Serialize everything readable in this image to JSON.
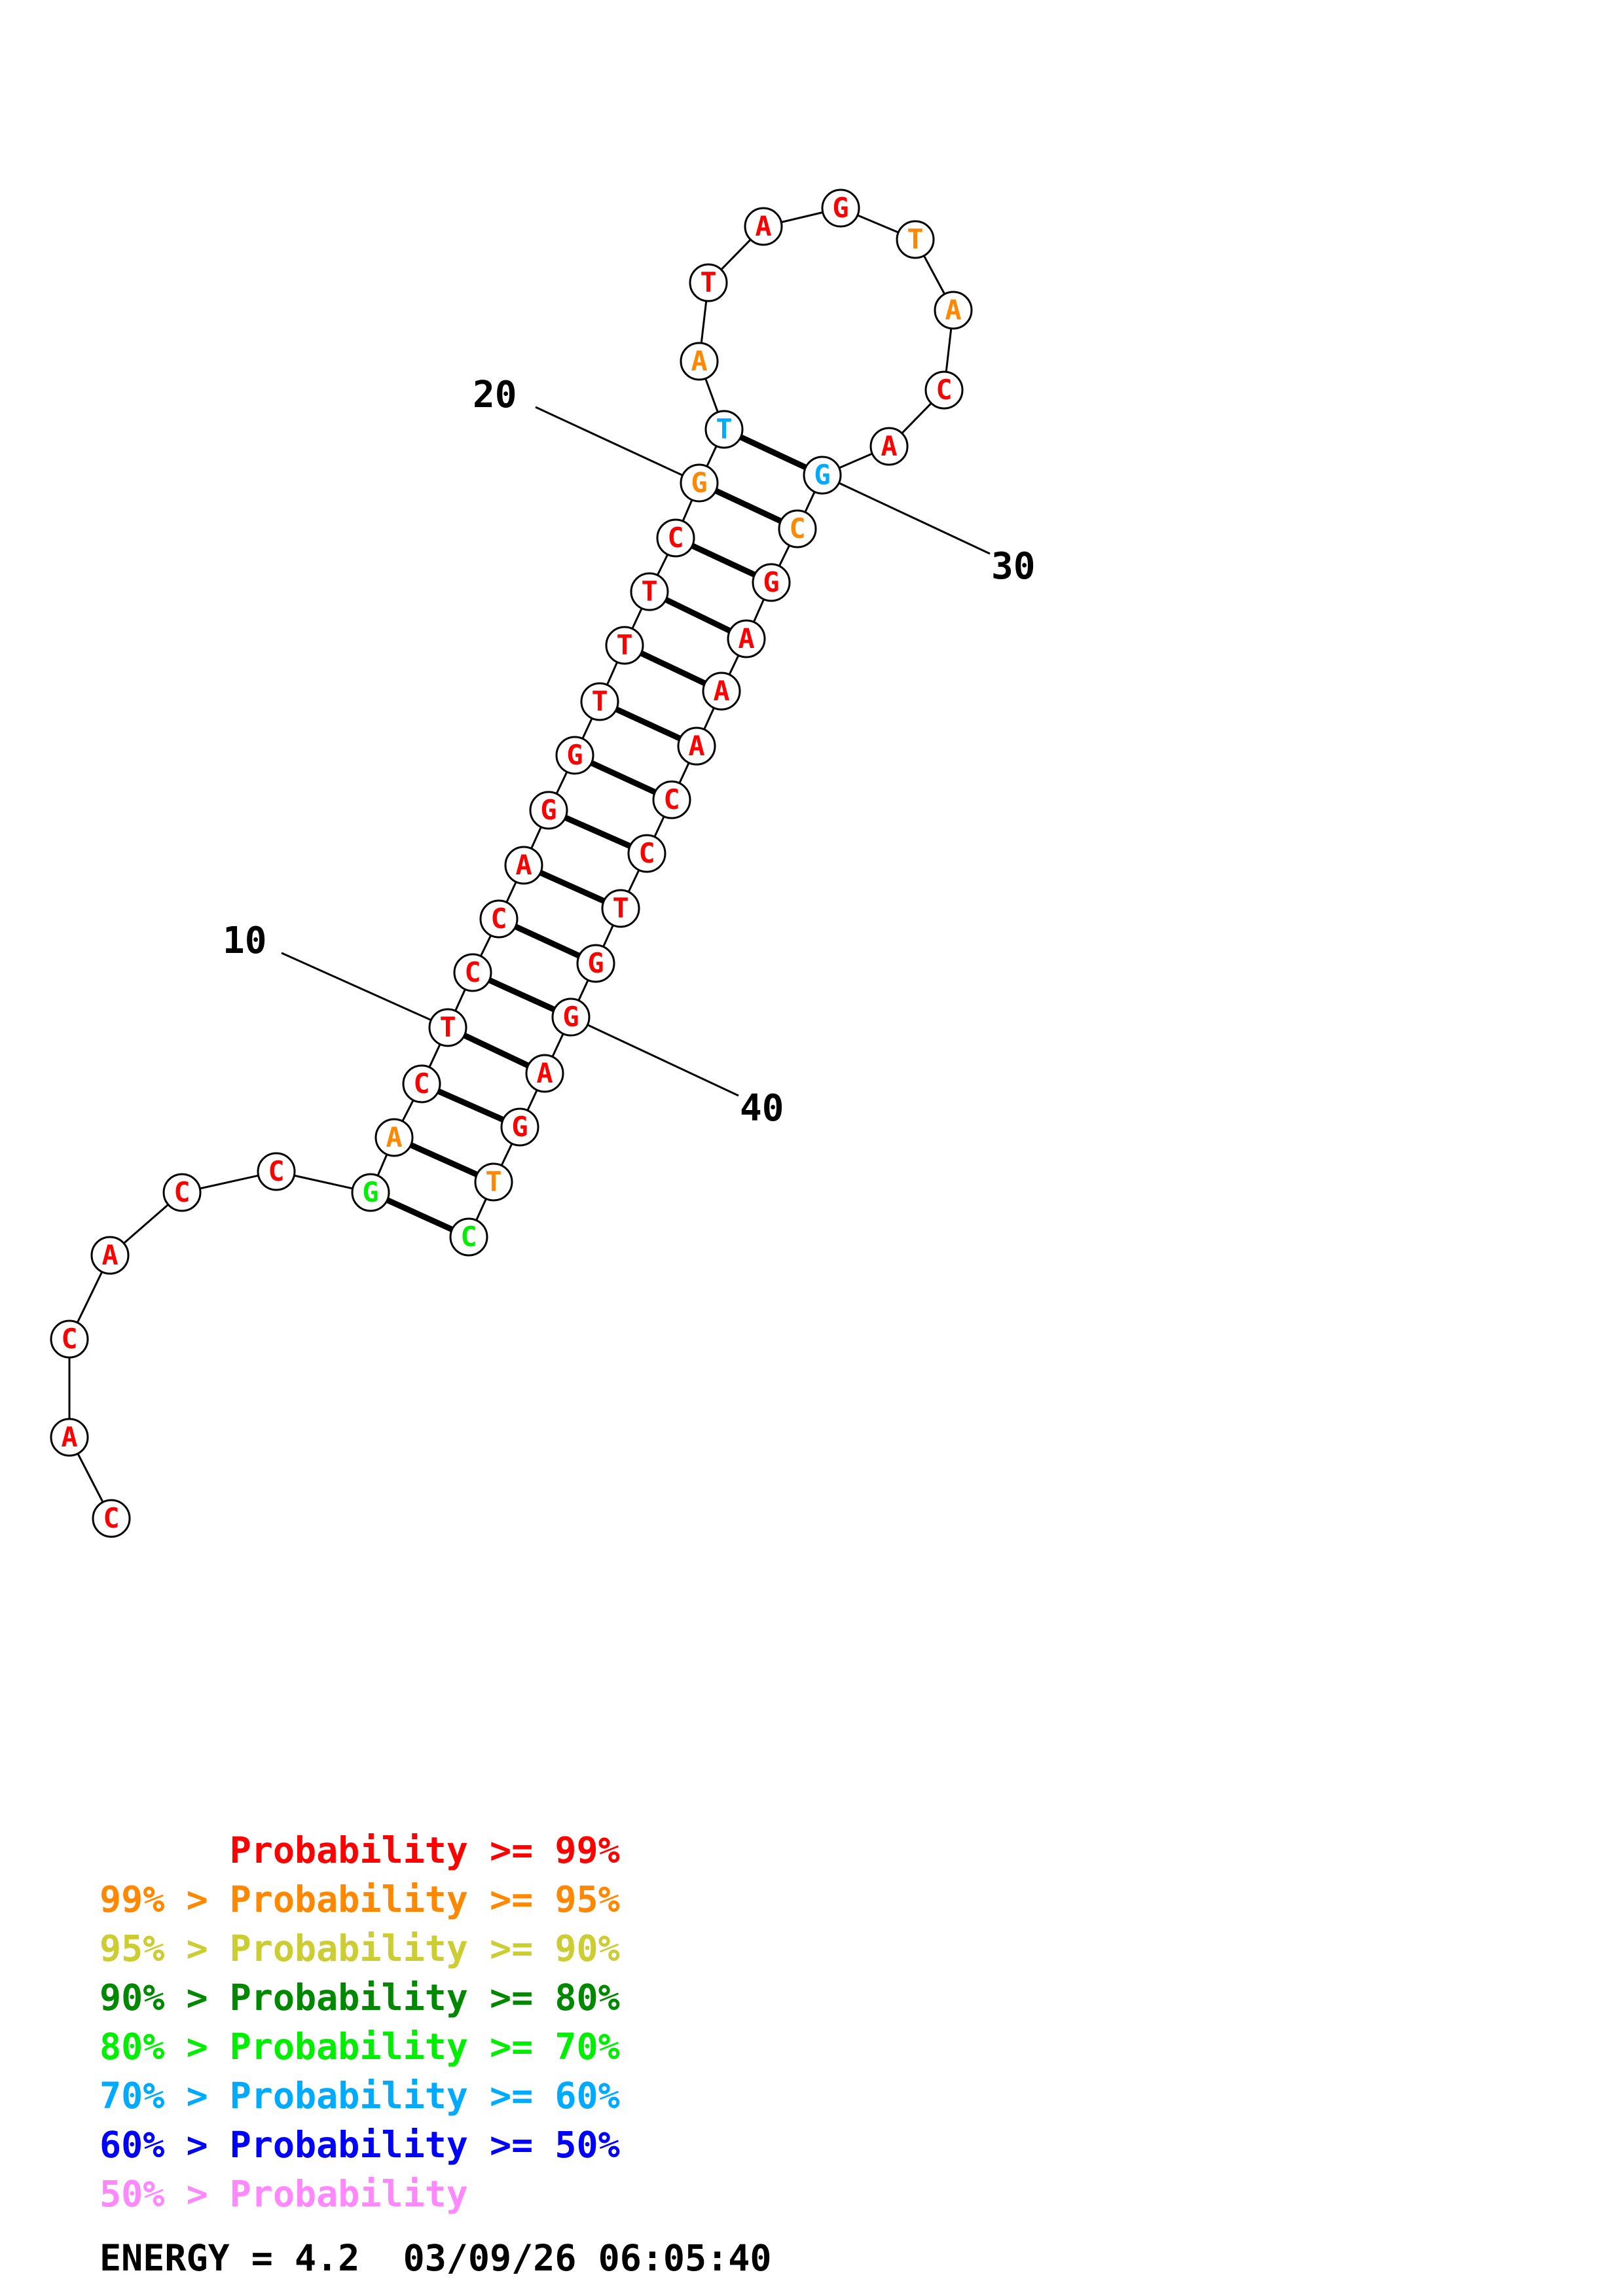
{
  "structure": {
    "nucleotides": [
      {
        "n": 1,
        "base": "C",
        "color": "#ff0000"
      },
      {
        "n": 2,
        "base": "A",
        "color": "#ff0000"
      },
      {
        "n": 3,
        "base": "C",
        "color": "#ff0000"
      },
      {
        "n": 4,
        "base": "A",
        "color": "#ff0000"
      },
      {
        "n": 5,
        "base": "C",
        "color": "#ff0000"
      },
      {
        "n": 6,
        "base": "C",
        "color": "#ff0000"
      },
      {
        "n": 7,
        "base": "G",
        "color": "#00ee00"
      },
      {
        "n": 8,
        "base": "A",
        "color": "#ff8800"
      },
      {
        "n": 9,
        "base": "C",
        "color": "#ff0000"
      },
      {
        "n": 10,
        "base": "T",
        "color": "#ff0000"
      },
      {
        "n": 11,
        "base": "C",
        "color": "#ff0000"
      },
      {
        "n": 12,
        "base": "C",
        "color": "#ff0000"
      },
      {
        "n": 13,
        "base": "A",
        "color": "#ff0000"
      },
      {
        "n": 14,
        "base": "G",
        "color": "#ff0000"
      },
      {
        "n": 15,
        "base": "G",
        "color": "#ff0000"
      },
      {
        "n": 16,
        "base": "T",
        "color": "#ff0000"
      },
      {
        "n": 17,
        "base": "T",
        "color": "#ff0000"
      },
      {
        "n": 18,
        "base": "T",
        "color": "#ff0000"
      },
      {
        "n": 19,
        "base": "C",
        "color": "#ff0000"
      },
      {
        "n": 20,
        "base": "G",
        "color": "#ff8800"
      },
      {
        "n": 21,
        "base": "T",
        "color": "#00aaff"
      },
      {
        "n": 22,
        "base": "A",
        "color": "#ff8800"
      },
      {
        "n": 23,
        "base": "T",
        "color": "#ff0000"
      },
      {
        "n": 24,
        "base": "A",
        "color": "#ff0000"
      },
      {
        "n": 25,
        "base": "G",
        "color": "#ff0000"
      },
      {
        "n": 26,
        "base": "T",
        "color": "#ff8800"
      },
      {
        "n": 27,
        "base": "A",
        "color": "#ff8800"
      },
      {
        "n": 28,
        "base": "C",
        "color": "#ff0000"
      },
      {
        "n": 29,
        "base": "A",
        "color": "#ff0000"
      },
      {
        "n": 30,
        "base": "G",
        "color": "#00aaff"
      },
      {
        "n": 31,
        "base": "C",
        "color": "#ff8800"
      },
      {
        "n": 32,
        "base": "G",
        "color": "#ff0000"
      },
      {
        "n": 33,
        "base": "A",
        "color": "#ff0000"
      },
      {
        "n": 34,
        "base": "A",
        "color": "#ff0000"
      },
      {
        "n": 35,
        "base": "A",
        "color": "#ff0000"
      },
      {
        "n": 36,
        "base": "C",
        "color": "#ff0000"
      },
      {
        "n": 37,
        "base": "C",
        "color": "#ff0000"
      },
      {
        "n": 38,
        "base": "T",
        "color": "#ff0000"
      },
      {
        "n": 39,
        "base": "G",
        "color": "#ff0000"
      },
      {
        "n": 40,
        "base": "G",
        "color": "#ff0000"
      },
      {
        "n": 41,
        "base": "A",
        "color": "#ff0000"
      },
      {
        "n": 42,
        "base": "G",
        "color": "#ff0000"
      },
      {
        "n": 43,
        "base": "T",
        "color": "#ff8800"
      },
      {
        "n": 44,
        "base": "C",
        "color": "#00ee00"
      }
    ],
    "pairs": [
      [
        7,
        44
      ],
      [
        8,
        43
      ],
      [
        9,
        42
      ],
      [
        10,
        41
      ],
      [
        11,
        40
      ],
      [
        12,
        39
      ],
      [
        13,
        38
      ],
      [
        14,
        37
      ],
      [
        15,
        36
      ],
      [
        16,
        35
      ],
      [
        17,
        34
      ],
      [
        18,
        33
      ],
      [
        19,
        32
      ],
      [
        20,
        31
      ],
      [
        21,
        30
      ]
    ],
    "position_labels": [
      {
        "n": 10,
        "text": "10"
      },
      {
        "n": 20,
        "text": "20"
      },
      {
        "n": 30,
        "text": "30"
      },
      {
        "n": 40,
        "text": "40"
      }
    ]
  },
  "legend": {
    "rows": [
      {
        "text": "      Probability >= 99%",
        "color": "#ff0000"
      },
      {
        "text": "99% > Probability >= 95%",
        "color": "#ff8800"
      },
      {
        "text": "95% > Probability >= 90%",
        "color": "#cccc33"
      },
      {
        "text": "90% > Probability >= 80%",
        "color": "#008800"
      },
      {
        "text": "80% > Probability >= 70%",
        "color": "#00ee00"
      },
      {
        "text": "70% > Probability >= 60%",
        "color": "#00aaff"
      },
      {
        "text": "60% > Probability >= 50%",
        "color": "#0000ff"
      },
      {
        "text": "50% > Probability",
        "color": "#ff88ff"
      }
    ]
  },
  "energy": {
    "text": "ENERGY = 4.2  03/09/26 06:05:40"
  }
}
